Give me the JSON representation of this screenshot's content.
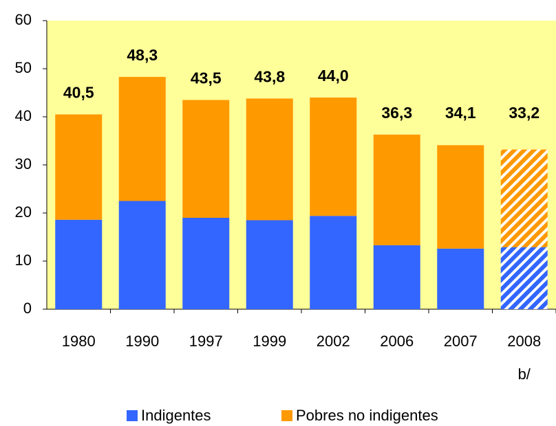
{
  "chart_data": {
    "type": "stacked_bar",
    "categories": [
      "1980",
      "1990",
      "1997",
      "1999",
      "2002",
      "2006",
      "2007",
      "2008"
    ],
    "category_note": "b/",
    "series": [
      {
        "name": "Indigentes",
        "color": "#3366FF",
        "values": [
          18.6,
          22.5,
          19.0,
          18.5,
          19.4,
          13.3,
          12.6,
          12.9
        ],
        "value_labels": [
          "18.6",
          "22.5",
          "19.0",
          "18.5",
          "19.4",
          "13.3",
          "12.6",
          "12.9"
        ]
      },
      {
        "name": "Pobres no indigentes",
        "color": "#FF9900",
        "values": [
          21.9,
          25.8,
          24.5,
          25.3,
          24.6,
          23.0,
          21.5,
          20.3
        ]
      }
    ],
    "totals": [
      40.5,
      48.3,
      43.5,
      43.8,
      44.0,
      36.3,
      34.1,
      33.2
    ],
    "total_labels": [
      "40,5",
      "48,3",
      "43,5",
      "43,8",
      "44,0",
      "36,3",
      "34,1",
      "33,2"
    ],
    "hatched": [
      false,
      false,
      false,
      false,
      false,
      false,
      false,
      true
    ],
    "background": "#FFFF99",
    "ylim": [
      0,
      60
    ],
    "yticks": [
      0,
      10,
      20,
      30,
      40,
      50,
      60
    ]
  }
}
